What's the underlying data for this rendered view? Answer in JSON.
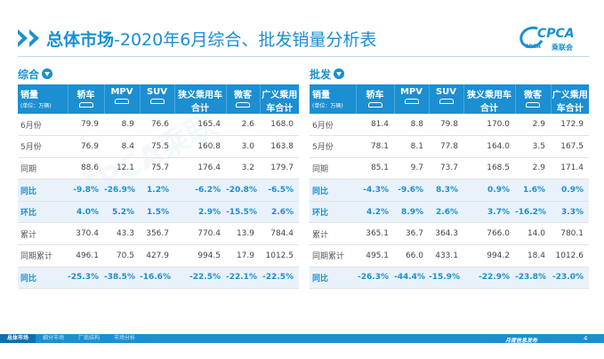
{
  "header": {
    "title_bold": "总体市场",
    "title_rest": "-2020年6月综合、批发销量分析表"
  },
  "logo": {
    "text": "CPCA",
    "sub": "CPCA",
    "cn": "乘联会"
  },
  "watermark": "CPCA乘联",
  "left": {
    "label": "综合",
    "icon": "circle-down-arrow-icon",
    "columns": [
      {
        "label": "销量",
        "unit": "(单位：万辆)"
      },
      {
        "label": "轿车",
        "car": true
      },
      {
        "label": "MPV",
        "car": true
      },
      {
        "label": "SUV",
        "car": true
      },
      {
        "label": "狭义乘用车合计"
      },
      {
        "label": "微客",
        "car": true
      },
      {
        "label": "广义乘用车合计"
      }
    ],
    "rows": [
      {
        "label": "6月份",
        "pct": false,
        "values": [
          "79.9",
          "8.9",
          "76.6",
          "165.4",
          "2.6",
          "168.0"
        ]
      },
      {
        "label": "5月份",
        "pct": false,
        "values": [
          "76.9",
          "8.4",
          "75.5",
          "160.8",
          "3.0",
          "163.8"
        ]
      },
      {
        "label": "同期",
        "pct": false,
        "values": [
          "88.6",
          "12.1",
          "75.7",
          "176.4",
          "3.2",
          "179.7"
        ]
      },
      {
        "label": "同比",
        "pct": true,
        "values": [
          "-9.8%",
          "-26.9%",
          "1.2%",
          "-6.2%",
          "-20.8%",
          "-6.5%"
        ]
      },
      {
        "label": "环比",
        "pct": true,
        "values": [
          "4.0%",
          "5.2%",
          "1.5%",
          "2.9%",
          "-15.5%",
          "2.6%"
        ]
      },
      {
        "label": "累计",
        "pct": false,
        "values": [
          "370.4",
          "43.3",
          "356.7",
          "770.4",
          "13.9",
          "784.4"
        ]
      },
      {
        "label": "同期累计",
        "pct": false,
        "values": [
          "496.1",
          "70.5",
          "427.9",
          "994.5",
          "17.9",
          "1012.5"
        ]
      },
      {
        "label": "同比",
        "pct": true,
        "values": [
          "-25.3%",
          "-38.5%",
          "-16.6%",
          "-22.5%",
          "-22.1%",
          "-22.5%"
        ]
      }
    ]
  },
  "right": {
    "label": "批发",
    "icon": "circle-down-arrow-icon",
    "columns": [
      {
        "label": "销量",
        "unit": "(单位：万辆)"
      },
      {
        "label": "轿车",
        "car": true
      },
      {
        "label": "MPV",
        "car": true
      },
      {
        "label": "SUV",
        "car": true
      },
      {
        "label": "狭义乘用车合计"
      },
      {
        "label": "微客",
        "car": true
      },
      {
        "label": "广义乘用车合计"
      }
    ],
    "rows": [
      {
        "label": "6月份",
        "pct": false,
        "values": [
          "81.4",
          "8.8",
          "79.8",
          "170.0",
          "2.9",
          "172.9"
        ]
      },
      {
        "label": "5月份",
        "pct": false,
        "values": [
          "78.1",
          "8.1",
          "77.8",
          "164.0",
          "3.5",
          "167.5"
        ]
      },
      {
        "label": "同期",
        "pct": false,
        "values": [
          "85.1",
          "9.7",
          "73.7",
          "168.5",
          "2.9",
          "171.4"
        ]
      },
      {
        "label": "同比",
        "pct": true,
        "values": [
          "-4.3%",
          "-9.6%",
          "8.3%",
          "0.9%",
          "1.6%",
          "0.9%"
        ]
      },
      {
        "label": "环比",
        "pct": true,
        "values": [
          "4.2%",
          "8.9%",
          "2.6%",
          "3.7%",
          "-16.2%",
          "3.3%"
        ]
      },
      {
        "label": "累计",
        "pct": false,
        "values": [
          "365.1",
          "36.7",
          "364.3",
          "766.0",
          "14.0",
          "780.1"
        ]
      },
      {
        "label": "同期累计",
        "pct": false,
        "values": [
          "495.1",
          "66.0",
          "433.1",
          "994.2",
          "18.4",
          "1012.6"
        ]
      },
      {
        "label": "同比",
        "pct": true,
        "values": [
          "-26.3%",
          "-44.4%",
          "-15.9%",
          "-22.9%",
          "-23.8%",
          "-23.0%"
        ]
      }
    ]
  },
  "footer": {
    "nav": [
      {
        "label": "总体市场",
        "active": true
      },
      {
        "label": "细分市场",
        "active": false
      },
      {
        "label": "厂商结构",
        "active": false
      },
      {
        "label": "市场分析",
        "active": false
      }
    ],
    "tag": "月度信息发布",
    "page": "4"
  },
  "colors": {
    "accent": "#1b8fd1",
    "pct_row_bg": "#e9f2fa"
  }
}
